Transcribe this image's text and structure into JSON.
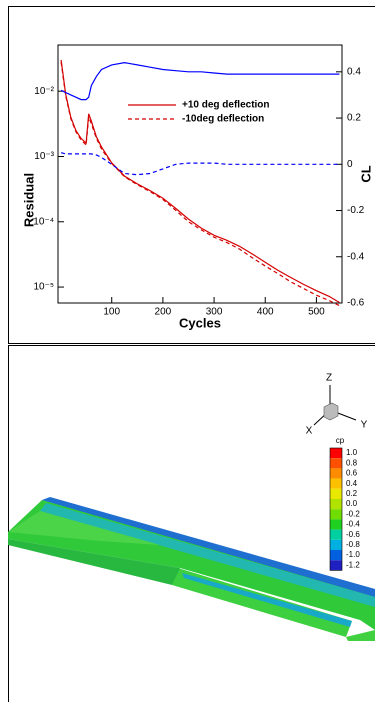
{
  "chart_data": {
    "type": "line",
    "xlabel": "Cycles",
    "ylabel": "Residual",
    "y2label": "CL",
    "ylog": true,
    "legend": "top-center",
    "x": [
      1,
      10,
      20,
      30,
      40,
      50,
      55,
      60,
      70,
      80,
      100,
      125,
      150,
      175,
      200,
      225,
      250,
      275,
      300,
      325,
      350,
      375,
      400,
      425,
      450,
      475,
      500,
      525,
      545
    ],
    "xlim": [
      -5,
      550
    ],
    "xticks": [
      100,
      200,
      300,
      400,
      500
    ],
    "ylim": [
      5.7e-06,
      0.051
    ],
    "yticks": [
      {
        "value": 0.01,
        "label": "10⁻²"
      },
      {
        "value": 0.001,
        "label": "10⁻³"
      },
      {
        "value": 0.0001,
        "label": "10⁻⁴"
      },
      {
        "value": 1e-05,
        "label": "10⁻⁵"
      }
    ],
    "y2lim": [
      -0.6,
      0.516
    ],
    "y2ticks": [
      0.4,
      0.2,
      0,
      -0.2,
      -0.4,
      -0.6
    ],
    "series": [
      {
        "name": "+10 deg deflection",
        "color": "#d40000",
        "linestyle": "solid",
        "values": [
          0.03,
          0.009,
          0.004,
          0.0025,
          0.0019,
          0.0016,
          0.0045,
          0.0035,
          0.002,
          0.0014,
          0.0008,
          0.0005,
          0.00038,
          0.0003,
          0.00023,
          0.00016,
          0.00011,
          8e-05,
          6.2e-05,
          5.2e-05,
          4.2e-05,
          3.2e-05,
          2.4e-05,
          1.8e-05,
          1.4e-05,
          1.1e-05,
          8.8e-06,
          7.2e-06,
          5.8e-06
        ]
      },
      {
        "name": "-10deg deflection",
        "color": "#d40000",
        "linestyle": "dashed",
        "values": [
          0.028,
          0.0085,
          0.0038,
          0.0024,
          0.0018,
          0.0015,
          0.004,
          0.0032,
          0.0019,
          0.0013,
          0.00078,
          0.00049,
          0.00037,
          0.00029,
          0.00022,
          0.00015,
          0.0001,
          7.5e-05,
          5.8e-05,
          4.8e-05,
          3.8e-05,
          2.8e-05,
          2.1e-05,
          1.6e-05,
          1.2e-05,
          9.5e-06,
          7.5e-06,
          6.2e-06,
          5.2e-06
        ]
      },
      {
        "color": "#0000ff",
        "linestyle": "solid",
        "axis": "y2",
        "values": [
          0.32,
          0.31,
          0.3,
          0.29,
          0.28,
          0.28,
          0.29,
          0.34,
          0.38,
          0.41,
          0.43,
          0.44,
          0.43,
          0.42,
          0.41,
          0.405,
          0.4,
          0.4,
          0.395,
          0.39,
          0.39,
          0.39,
          0.39,
          0.39,
          0.39,
          0.39,
          0.39,
          0.39,
          0.39
        ]
      },
      {
        "color": "#0000ff",
        "linestyle": "dashed",
        "axis": "y2",
        "values": [
          0.05,
          0.045,
          0.045,
          0.045,
          0.045,
          0.045,
          0.045,
          0.045,
          0.04,
          0.03,
          0,
          -0.04,
          -0.045,
          -0.04,
          -0.02,
          0,
          0.005,
          0.005,
          0.005,
          0,
          0,
          0,
          0,
          0,
          0,
          0,
          0,
          0,
          0
        ]
      }
    ]
  },
  "contour_plot": {
    "triad": {
      "z": "Z",
      "x": "X",
      "y": "Y"
    },
    "colorbar": {
      "title": "cp",
      "labels": [
        "1.0",
        "0.8",
        "0.6",
        "0.4",
        "0.2",
        "0.0",
        "-0.2",
        "-0.4",
        "-0.6",
        "-0.8",
        "-1.0",
        "-1.2"
      ],
      "colors": [
        "#ff0000",
        "#ff5000",
        "#ff8c00",
        "#ffc000",
        "#e8e800",
        "#b0e400",
        "#70dc00",
        "#20d020",
        "#00d0a0",
        "#00b0e0",
        "#0060e0",
        "#2020c0"
      ]
    }
  }
}
